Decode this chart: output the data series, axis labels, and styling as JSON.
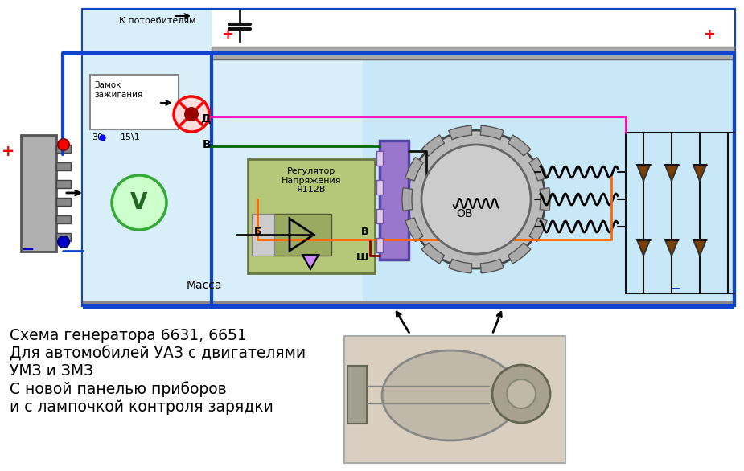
{
  "bg_color": "#ffffff",
  "diagram_bg": "#c8e8f8",
  "border_color": "#1144cc",
  "wire_blue": "#1144cc",
  "wire_red": "#cc0000",
  "wire_green": "#006600",
  "wire_pink": "#ff00bb",
  "wire_orange": "#ff6600",
  "wire_brown": "#7B3F00",
  "wire_black": "#111111",
  "wire_gray": "#888888",
  "label_k_potrebitelyam": "К потребителям",
  "label_zamok": "Замок\nзажигания",
  "label_30": "30",
  "label_15_1": "15\\1",
  "label_d": "Д",
  "label_b_upper": "В",
  "label_regulator": "Регулятор\nНапряжения\nЯ112В",
  "label_b": "Б",
  "label_v": "В",
  "label_sh": "Ш",
  "label_ob": "ОВ",
  "label_massa": "Масса",
  "label_plus": "+",
  "label_minus": "−",
  "title_text": "Схема генератора 6631, 6651\nДля автомобилей УАЗ с двигателями\nУМЗ и ЗМЗ\nС новой панелью приборов\nи с лампочкой контроля зарядки"
}
